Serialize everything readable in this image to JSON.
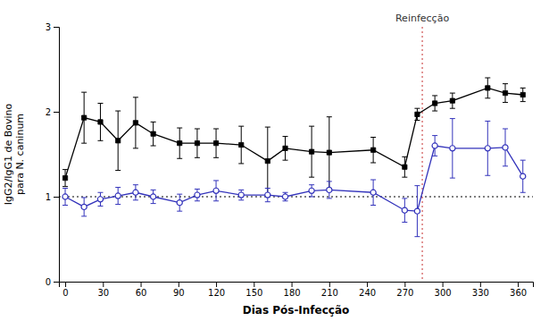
{
  "chart_data": {
    "type": "line",
    "x_label": "Dias Pós-Infecção",
    "y_label": "IgG2/IgG1 de Bovino\npara N. caninum",
    "x": [
      0,
      15,
      28,
      42,
      56,
      70,
      91,
      105,
      120,
      140,
      161,
      175,
      196,
      210,
      245,
      270,
      280,
      294,
      308,
      336,
      350,
      364
    ],
    "series": [
      {
        "color": "#000000",
        "marker": "square",
        "line_style": "solid",
        "values": [
          1.22,
          1.93,
          1.88,
          1.66,
          1.87,
          1.74,
          1.63,
          1.63,
          1.63,
          1.61,
          1.42,
          1.57,
          1.53,
          1.52,
          1.55,
          1.35,
          1.97,
          2.1,
          2.13,
          2.28,
          2.22,
          2.2
        ],
        "errors": [
          0.1,
          0.3,
          0.22,
          0.35,
          0.3,
          0.14,
          0.18,
          0.17,
          0.17,
          0.22,
          0.4,
          0.14,
          0.3,
          0.42,
          0.15,
          0.12,
          0.07,
          0.09,
          0.09,
          0.12,
          0.11,
          0.08
        ]
      },
      {
        "color": "#3333bb",
        "marker": "circle",
        "line_style": "solid",
        "values": [
          1.0,
          0.88,
          0.97,
          1.01,
          1.05,
          1.0,
          0.93,
          1.02,
          1.07,
          1.02,
          1.02,
          1.0,
          1.07,
          1.08,
          1.05,
          0.84,
          0.83,
          1.6,
          1.57,
          1.57,
          1.58,
          1.24
        ],
        "errors": [
          0.1,
          0.11,
          0.08,
          0.1,
          0.09,
          0.08,
          0.1,
          0.07,
          0.12,
          0.06,
          0.08,
          0.05,
          0.07,
          0.1,
          0.15,
          0.14,
          0.3,
          0.12,
          0.35,
          0.32,
          0.22,
          0.19
        ]
      }
    ],
    "reference_lines": [
      {
        "y": 1.0,
        "color": "#000000",
        "line_style": "dotted"
      },
      {
        "x": 284,
        "color": "#cc4444",
        "line_style": "dotted"
      }
    ],
    "annotations": [
      {
        "text": "Reinfecção",
        "x": 284,
        "y": 3
      }
    ],
    "xlim": [
      -5,
      372
    ],
    "ylim": [
      0,
      3
    ],
    "xticks": [
      0,
      30,
      60,
      90,
      120,
      150,
      180,
      210,
      240,
      270,
      300,
      330,
      360
    ],
    "yticks": [
      0,
      1,
      2,
      3
    ],
    "grid": false
  }
}
